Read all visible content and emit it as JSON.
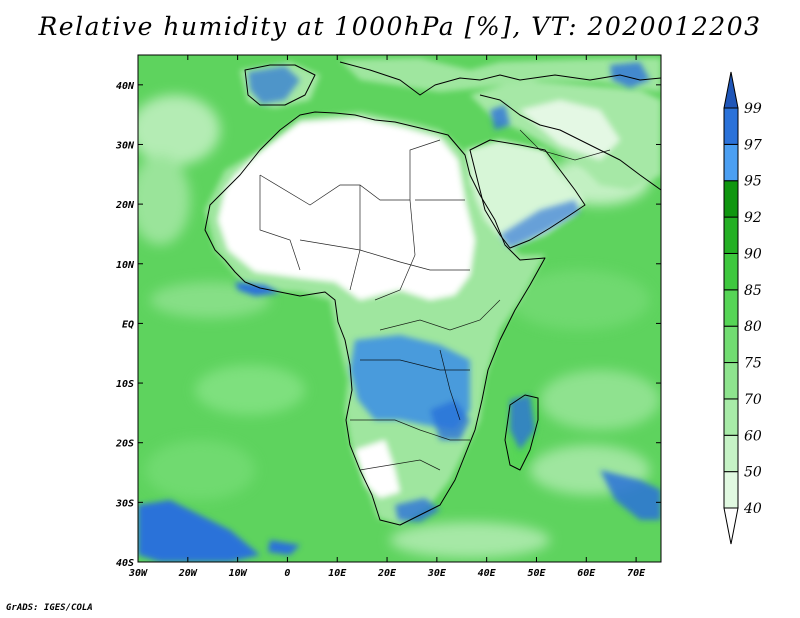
{
  "title": "Relative humidity at 1000hPa [%], VT: 2020012203",
  "credit": "GrADS: IGES/COLA",
  "map": {
    "lon_range": [
      -30,
      75
    ],
    "lat_range": [
      -40,
      45
    ],
    "lon_ticks": [
      {
        "value": -30,
        "label": "30W"
      },
      {
        "value": -20,
        "label": "20W"
      },
      {
        "value": -10,
        "label": "10W"
      },
      {
        "value": 0,
        "label": "0"
      },
      {
        "value": 10,
        "label": "10E"
      },
      {
        "value": 20,
        "label": "20E"
      },
      {
        "value": 30,
        "label": "30E"
      },
      {
        "value": 40,
        "label": "40E"
      },
      {
        "value": 50,
        "label": "50E"
      },
      {
        "value": 60,
        "label": "60E"
      },
      {
        "value": 70,
        "label": "70E"
      }
    ],
    "lat_ticks": [
      {
        "value": 40,
        "label": "40N"
      },
      {
        "value": 30,
        "label": "30N"
      },
      {
        "value": 20,
        "label": "20N"
      },
      {
        "value": 10,
        "label": "10N"
      },
      {
        "value": 0,
        "label": "EQ"
      },
      {
        "value": -10,
        "label": "10S"
      },
      {
        "value": -20,
        "label": "20S"
      },
      {
        "value": -30,
        "label": "30S"
      },
      {
        "value": -40,
        "label": "40S"
      }
    ],
    "ocean_color": "#5ed35e",
    "coast_color": "#000000"
  },
  "colorbar": {
    "levels": [
      40,
      50,
      60,
      70,
      75,
      80,
      85,
      90,
      92,
      95,
      97,
      99
    ],
    "colors": [
      "#ffffff",
      "#e1f9e1",
      "#c6f3c6",
      "#a8eba8",
      "#8ee48e",
      "#72dd72",
      "#56d556",
      "#3ec83e",
      "#24b024",
      "#0f960f",
      "#4b9ff2",
      "#2b72d9",
      "#1f56b8"
    ]
  }
}
